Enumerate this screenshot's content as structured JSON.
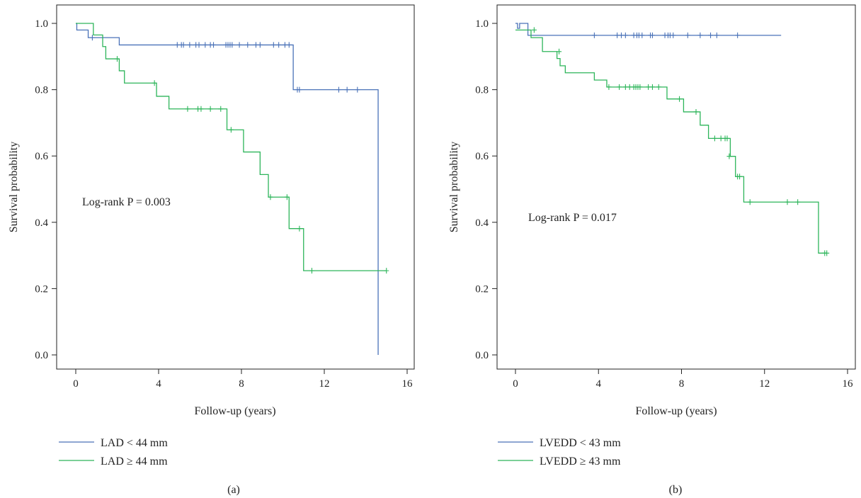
{
  "colors": {
    "blue": "#4a72b8",
    "green": "#2db55a",
    "axis": "#222222"
  },
  "chart_data": [
    {
      "type": "line",
      "subtype": "kaplan-meier",
      "panel_label": "(a)",
      "xlabel": "Follow-up (years)",
      "ylabel": "Survival probability",
      "xlim": [
        0,
        16
      ],
      "ylim": [
        0,
        1
      ],
      "xticks": [
        0,
        4,
        8,
        12,
        16
      ],
      "yticks": [
        0.0,
        0.2,
        0.4,
        0.6,
        0.8,
        1.0
      ],
      "xtick_labels": [
        "0",
        "4",
        "8",
        "12",
        "16"
      ],
      "ytick_labels": [
        "0.0",
        "0.2",
        "0.4",
        "0.6",
        "0.8",
        "1.0"
      ],
      "annotation": "Log-rank P = 0.003",
      "legend_position": "bottom-left",
      "grid": false,
      "series": [
        {
          "name": "LAD < 44 mm",
          "color": "#4a72b8",
          "steps": [
            [
              0,
              1.0
            ],
            [
              0.05,
              0.98
            ],
            [
              0.6,
              0.957
            ],
            [
              2.1,
              0.935
            ],
            [
              10.5,
              0.8
            ],
            [
              14.6,
              0.0
            ]
          ],
          "censored": [
            [
              0.8,
              0.957
            ],
            [
              4.9,
              0.935
            ],
            [
              5.1,
              0.935
            ],
            [
              5.2,
              0.935
            ],
            [
              5.5,
              0.935
            ],
            [
              5.8,
              0.935
            ],
            [
              5.95,
              0.935
            ],
            [
              6.25,
              0.935
            ],
            [
              6.5,
              0.935
            ],
            [
              6.65,
              0.935
            ],
            [
              7.25,
              0.935
            ],
            [
              7.35,
              0.935
            ],
            [
              7.45,
              0.935
            ],
            [
              7.55,
              0.935
            ],
            [
              7.9,
              0.935
            ],
            [
              8.3,
              0.935
            ],
            [
              8.7,
              0.935
            ],
            [
              8.9,
              0.935
            ],
            [
              9.55,
              0.935
            ],
            [
              9.8,
              0.935
            ],
            [
              10.1,
              0.935
            ],
            [
              10.3,
              0.935
            ],
            [
              10.7,
              0.8
            ],
            [
              10.8,
              0.8
            ],
            [
              12.7,
              0.8
            ],
            [
              13.1,
              0.8
            ],
            [
              13.6,
              0.8
            ]
          ],
          "end_x": 14.6
        },
        {
          "name": "LAD ≥ 44 mm",
          "color": "#2db55a",
          "steps": [
            [
              0,
              1.0
            ],
            [
              0.85,
              0.965
            ],
            [
              1.3,
              0.93
            ],
            [
              1.45,
              0.893
            ],
            [
              2.1,
              0.857
            ],
            [
              2.35,
              0.82
            ],
            [
              3.9,
              0.78
            ],
            [
              4.5,
              0.742
            ],
            [
              7.3,
              0.679
            ],
            [
              8.1,
              0.612
            ],
            [
              8.9,
              0.544
            ],
            [
              9.3,
              0.476
            ],
            [
              10.3,
              0.381
            ],
            [
              11.0,
              0.254
            ]
          ],
          "censored": [
            [
              2.0,
              0.893
            ],
            [
              3.8,
              0.82
            ],
            [
              5.4,
              0.742
            ],
            [
              5.9,
              0.742
            ],
            [
              6.05,
              0.742
            ],
            [
              6.5,
              0.742
            ],
            [
              7.0,
              0.742
            ],
            [
              7.5,
              0.679
            ],
            [
              9.4,
              0.476
            ],
            [
              10.2,
              0.476
            ],
            [
              10.8,
              0.381
            ],
            [
              11.4,
              0.254
            ],
            [
              15.0,
              0.254
            ]
          ],
          "end_x": 15.0
        }
      ]
    },
    {
      "type": "line",
      "subtype": "kaplan-meier",
      "panel_label": "(b)",
      "xlabel": "Follow-up (years)",
      "ylabel": "Survival probability",
      "xlim": [
        0,
        16
      ],
      "ylim": [
        0,
        1
      ],
      "xticks": [
        0,
        4,
        8,
        12,
        16
      ],
      "yticks": [
        0.0,
        0.2,
        0.4,
        0.6,
        0.8,
        1.0
      ],
      "xtick_labels": [
        "0",
        "4",
        "8",
        "12",
        "16"
      ],
      "ytick_labels": [
        "0.0",
        "0.2",
        "0.4",
        "0.6",
        "0.8",
        "1.0"
      ],
      "annotation": "Log-rank P = 0.017",
      "legend_position": "bottom-left",
      "grid": false,
      "series": [
        {
          "name": "LVEDD < 43 mm",
          "color": "#4a72b8",
          "steps": [
            [
              0,
              1.0
            ],
            [
              0.1,
              0.985
            ],
            [
              0.2,
              1.0
            ],
            [
              0.6,
              0.964
            ]
          ],
          "censored": [
            [
              3.8,
              0.964
            ],
            [
              4.9,
              0.964
            ],
            [
              5.1,
              0.964
            ],
            [
              5.3,
              0.964
            ],
            [
              5.7,
              0.964
            ],
            [
              5.85,
              0.964
            ],
            [
              5.95,
              0.964
            ],
            [
              6.1,
              0.964
            ],
            [
              6.5,
              0.964
            ],
            [
              6.6,
              0.964
            ],
            [
              7.2,
              0.964
            ],
            [
              7.35,
              0.964
            ],
            [
              7.45,
              0.964
            ],
            [
              7.6,
              0.964
            ],
            [
              8.3,
              0.964
            ],
            [
              8.9,
              0.964
            ],
            [
              9.4,
              0.964
            ],
            [
              9.7,
              0.964
            ],
            [
              10.7,
              0.964
            ]
          ],
          "end_x": 12.8
        },
        {
          "name": "LVEDD ≥ 43 mm",
          "color": "#2db55a",
          "steps": [
            [
              0,
              0.98
            ],
            [
              0.5,
              0.98
            ],
            [
              0.75,
              0.957
            ],
            [
              1.3,
              0.915
            ],
            [
              2.0,
              0.894
            ],
            [
              2.15,
              0.872
            ],
            [
              2.4,
              0.851
            ],
            [
              3.8,
              0.829
            ],
            [
              4.4,
              0.808
            ],
            [
              7.3,
              0.772
            ],
            [
              8.1,
              0.733
            ],
            [
              8.9,
              0.693
            ],
            [
              9.3,
              0.653
            ],
            [
              10.35,
              0.599
            ],
            [
              10.6,
              0.538
            ],
            [
              11.0,
              0.461
            ],
            [
              14.6,
              0.307
            ]
          ],
          "censored": [
            [
              0.9,
              0.98
            ],
            [
              2.1,
              0.915
            ],
            [
              4.5,
              0.808
            ],
            [
              5.0,
              0.808
            ],
            [
              5.3,
              0.808
            ],
            [
              5.5,
              0.808
            ],
            [
              5.7,
              0.808
            ],
            [
              5.8,
              0.808
            ],
            [
              5.9,
              0.808
            ],
            [
              6.0,
              0.808
            ],
            [
              6.4,
              0.808
            ],
            [
              6.6,
              0.808
            ],
            [
              6.9,
              0.808
            ],
            [
              7.9,
              0.772
            ],
            [
              8.7,
              0.733
            ],
            [
              9.6,
              0.653
            ],
            [
              9.9,
              0.653
            ],
            [
              10.1,
              0.653
            ],
            [
              10.2,
              0.653
            ],
            [
              10.3,
              0.599
            ],
            [
              10.7,
              0.538
            ],
            [
              10.8,
              0.538
            ],
            [
              11.3,
              0.461
            ],
            [
              13.1,
              0.461
            ],
            [
              13.6,
              0.461
            ],
            [
              14.9,
              0.307
            ],
            [
              15.0,
              0.307
            ]
          ],
          "end_x": 15.0
        }
      ]
    }
  ]
}
